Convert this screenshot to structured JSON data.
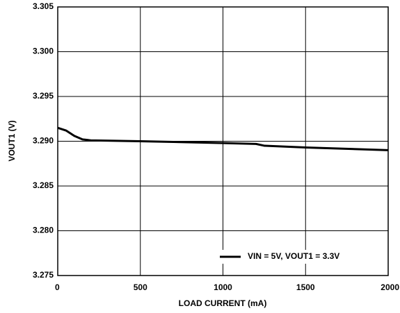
{
  "chart_data": {
    "type": "line",
    "xlabel": "LOAD CURRENT (mA)",
    "ylabel": "VOUT1 (V)",
    "x": [
      0,
      50,
      100,
      150,
      200,
      500,
      1000,
      1200,
      1250,
      1500,
      2000
    ],
    "series": [
      {
        "name": "VIN = 5V, VOUT1 = 3.3V",
        "color": "#000000",
        "values": [
          3.2915,
          3.2912,
          3.2906,
          3.2902,
          3.2901,
          3.29,
          3.2898,
          3.2897,
          3.2895,
          3.2893,
          3.289
        ]
      }
    ],
    "xlim": [
      0,
      2000
    ],
    "xticks": [
      0,
      500,
      1000,
      1500,
      2000
    ],
    "ylim": [
      3.275,
      3.305
    ],
    "yticks": [
      3.275,
      {
        "value": 3.28,
        "label": "3.280"
      },
      3.285,
      {
        "value": 3.29,
        "label": "3.290"
      },
      3.295,
      {
        "value": 3.3,
        "label": "3.300"
      },
      3.305
    ],
    "grid": true,
    "legend": "lower right"
  }
}
